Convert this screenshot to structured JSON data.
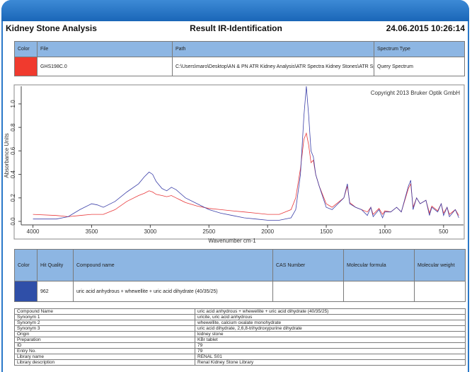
{
  "header": {
    "title": "Kidney Stone Analysis",
    "subtitle": "Result IR-Identification",
    "datetime": "24.06.2015 10:26:14"
  },
  "query_table": {
    "columns": [
      "Color",
      "File",
      "Path",
      "Spectrum Type"
    ],
    "color": "#f03a2e",
    "file": "GHS198C.0",
    "path": "C:\\Users\\maro\\Desktop\\AN & PN ATR Kidney Analysis\\ATR Spectra Kidney Stones\\ATR Sp",
    "spectrum_type": "Query Spectrum"
  },
  "chart_data": {
    "type": "line",
    "annotation": "Copyright 2013 Bruker Optik GmbH",
    "xlabel": "Wavenumber cm-1",
    "ylabel": "Absorbance Units",
    "x": [
      4000,
      3800,
      3700,
      3600,
      3500,
      3450,
      3400,
      3300,
      3200,
      3100,
      3050,
      3010,
      2980,
      2950,
      2900,
      2860,
      2820,
      2780,
      2700,
      2600,
      2500,
      2400,
      2300,
      2200,
      2100,
      2000,
      1900,
      1800,
      1760,
      1720,
      1690,
      1670,
      1650,
      1630,
      1610,
      1590,
      1560,
      1500,
      1450,
      1400,
      1350,
      1320,
      1300,
      1250,
      1200,
      1150,
      1120,
      1100,
      1050,
      1020,
      1000,
      950,
      900,
      860,
      800,
      780,
      760,
      730,
      700,
      650,
      620,
      600,
      550,
      520,
      500,
      470,
      450,
      400,
      370
    ],
    "series": [
      {
        "color": "#e8383a",
        "values": [
          0.06,
          0.05,
          0.04,
          0.05,
          0.06,
          0.06,
          0.06,
          0.1,
          0.17,
          0.22,
          0.24,
          0.26,
          0.25,
          0.23,
          0.22,
          0.21,
          0.22,
          0.2,
          0.16,
          0.13,
          0.11,
          0.1,
          0.09,
          0.08,
          0.07,
          0.06,
          0.06,
          0.1,
          0.2,
          0.45,
          0.7,
          0.75,
          0.65,
          0.5,
          0.52,
          0.4,
          0.3,
          0.15,
          0.12,
          0.16,
          0.2,
          0.3,
          0.16,
          0.12,
          0.1,
          0.08,
          0.12,
          0.06,
          0.11,
          0.06,
          0.09,
          0.08,
          0.12,
          0.08,
          0.28,
          0.32,
          0.12,
          0.2,
          0.15,
          0.18,
          0.07,
          0.13,
          0.09,
          0.15,
          0.07,
          0.12,
          0.06,
          0.1,
          0.05
        ]
      },
      {
        "color": "#3b3fa8",
        "values": [
          0.02,
          0.02,
          0.04,
          0.1,
          0.15,
          0.14,
          0.12,
          0.17,
          0.25,
          0.32,
          0.38,
          0.42,
          0.4,
          0.34,
          0.28,
          0.26,
          0.29,
          0.27,
          0.2,
          0.15,
          0.1,
          0.07,
          0.05,
          0.03,
          0.02,
          0.01,
          0.01,
          0.03,
          0.1,
          0.4,
          0.9,
          1.15,
          0.9,
          0.6,
          0.55,
          0.4,
          0.3,
          0.12,
          0.1,
          0.15,
          0.2,
          0.32,
          0.15,
          0.12,
          0.1,
          0.05,
          0.12,
          0.04,
          0.1,
          0.03,
          0.08,
          0.08,
          0.12,
          0.08,
          0.3,
          0.35,
          0.1,
          0.2,
          0.15,
          0.18,
          0.05,
          0.12,
          0.08,
          0.15,
          0.05,
          0.12,
          0.04,
          0.1,
          0.03
        ]
      }
    ],
    "xlim": [
      4100,
      330
    ],
    "ylim": [
      -0.03,
      1.15
    ],
    "xticks": [
      4000,
      3500,
      3000,
      2500,
      2000,
      1500,
      1000,
      500
    ],
    "yticks": [
      {
        "value": 0,
        "label": "0.0"
      },
      0.2,
      0.4,
      0.6,
      0.8,
      {
        "value": 1,
        "label": "1.0"
      }
    ]
  },
  "hits_table": {
    "columns": [
      "Color",
      "Hit Quality",
      "Compound name",
      "CAS Number",
      "Molecular formula",
      "Molecular weight"
    ],
    "color": "#2f4fa8",
    "hit_quality": 962,
    "compound": "uric acid anhydrous + whewellite + uric acid dihydrate (40/35/25)"
  },
  "details": [
    [
      "Compound Name",
      "uric acid anhydrous + whewellite + uric acid dihydrate (40/35/25)"
    ],
    [
      "Synonym 1",
      "uricite, uric acid anhydrous"
    ],
    [
      "Synonym 2",
      "whewellite, calcium oxalate monohydrate"
    ],
    [
      "Synonym 3",
      "uric acid dihydrate, 2,6,8-trihydroxypurine dihydrate"
    ],
    [
      "Origin",
      "kidney stone"
    ],
    [
      "Preparation",
      "KBr tablet"
    ],
    [
      "ID",
      "79"
    ],
    [
      "Entry No.",
      "79"
    ],
    [
      "Library name",
      "RENAL S01"
    ],
    [
      "Library description",
      "Renal Kidney Stone Library"
    ]
  ]
}
